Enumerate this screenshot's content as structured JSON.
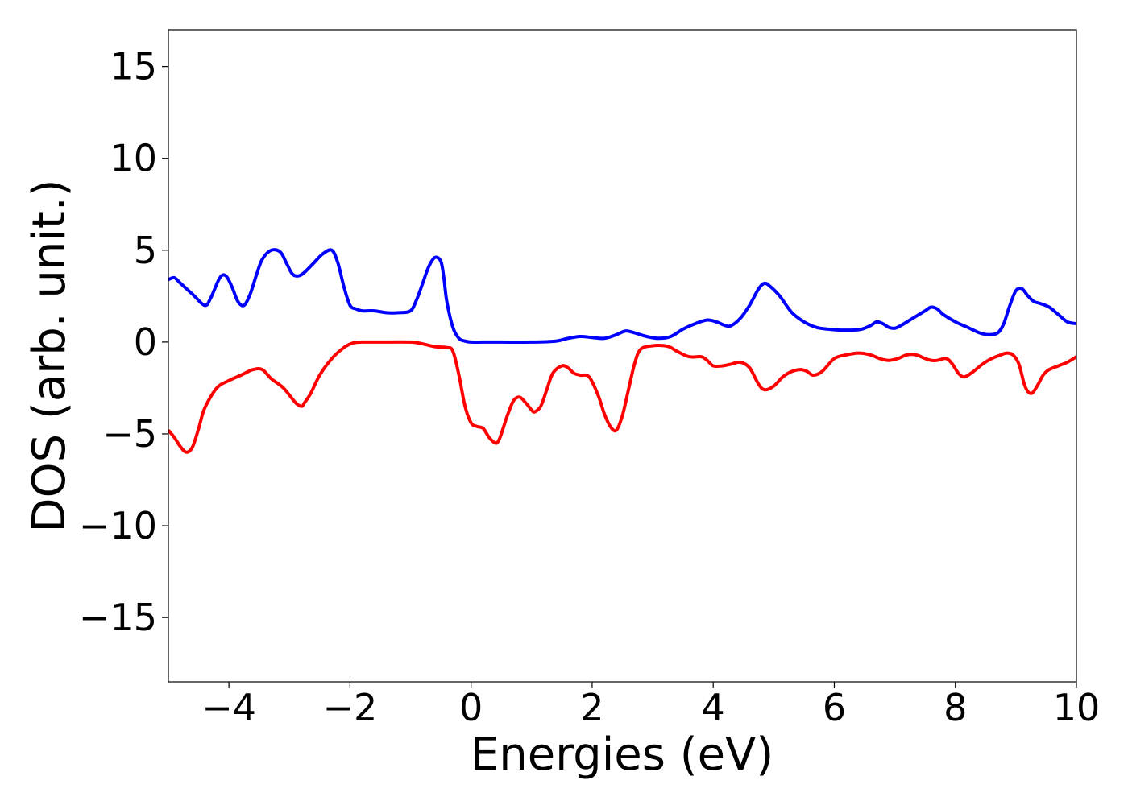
{
  "chart_data": {
    "type": "line",
    "title": "",
    "xlabel": "Energies (eV)",
    "ylabel": "DOS (arb. unit.)",
    "xlim": [
      -5,
      10
    ],
    "ylim": [
      -18.5,
      17
    ],
    "grid": false,
    "legend": "none",
    "x_ticks": [
      -4,
      -2,
      0,
      2,
      4,
      6,
      8,
      10
    ],
    "x_tick_labels": [
      "−4",
      "−2",
      "0",
      "2",
      "4",
      "6",
      "8",
      "10"
    ],
    "y_ticks": [
      15,
      10,
      5,
      0,
      -5,
      -10,
      -15
    ],
    "y_tick_labels": [
      "15",
      "10",
      "5",
      "0",
      "−5",
      "−10",
      "−15"
    ],
    "series": [
      {
        "color": "#0000ff",
        "x": [
          -5.0,
          -4.9,
          -4.8,
          -4.6,
          -4.4,
          -4.3,
          -4.15,
          -4.05,
          -3.95,
          -3.85,
          -3.75,
          -3.65,
          -3.55,
          -3.45,
          -3.3,
          -3.15,
          -3.05,
          -2.95,
          -2.85,
          -2.75,
          -2.6,
          -2.45,
          -2.3,
          -2.2,
          -2.1,
          -2.0,
          -1.9,
          -1.8,
          -1.6,
          -1.4,
          -1.2,
          -1.0,
          -0.9,
          -0.8,
          -0.7,
          -0.6,
          -0.5,
          -0.45,
          -0.4,
          -0.3,
          -0.2,
          -0.1,
          0.0,
          0.2,
          0.5,
          1.0,
          1.4,
          1.6,
          1.8,
          2.0,
          2.2,
          2.4,
          2.55,
          2.7,
          2.9,
          3.1,
          3.3,
          3.5,
          3.7,
          3.9,
          4.05,
          4.2,
          4.3,
          4.45,
          4.6,
          4.75,
          4.85,
          4.95,
          5.1,
          5.3,
          5.5,
          5.7,
          5.9,
          6.1,
          6.3,
          6.45,
          6.6,
          6.7,
          6.8,
          6.9,
          7.0,
          7.1,
          7.3,
          7.5,
          7.6,
          7.7,
          7.8,
          8.0,
          8.2,
          8.4,
          8.55,
          8.7,
          8.8,
          8.9,
          9.0,
          9.1,
          9.2,
          9.3,
          9.4,
          9.55,
          9.7,
          9.85,
          10.0
        ],
        "values": [
          3.4,
          3.5,
          3.2,
          2.6,
          2.0,
          2.4,
          3.5,
          3.6,
          3.0,
          2.2,
          2.0,
          2.6,
          3.6,
          4.5,
          5.0,
          4.9,
          4.3,
          3.7,
          3.6,
          3.8,
          4.3,
          4.8,
          5.0,
          4.3,
          3.0,
          2.0,
          1.8,
          1.7,
          1.7,
          1.6,
          1.6,
          1.7,
          2.3,
          3.2,
          4.1,
          4.6,
          4.4,
          3.5,
          2.2,
          0.8,
          0.2,
          0.05,
          0.0,
          0.0,
          0.0,
          0.0,
          0.05,
          0.2,
          0.3,
          0.25,
          0.2,
          0.4,
          0.6,
          0.5,
          0.3,
          0.2,
          0.3,
          0.7,
          1.0,
          1.2,
          1.1,
          0.9,
          0.9,
          1.3,
          2.0,
          2.9,
          3.2,
          3.0,
          2.5,
          1.6,
          1.1,
          0.8,
          0.7,
          0.65,
          0.65,
          0.7,
          0.9,
          1.1,
          1.0,
          0.8,
          0.75,
          0.9,
          1.3,
          1.7,
          1.9,
          1.8,
          1.5,
          1.1,
          0.8,
          0.5,
          0.4,
          0.5,
          1.0,
          2.0,
          2.8,
          2.9,
          2.5,
          2.2,
          2.1,
          1.9,
          1.5,
          1.1,
          1.0
        ]
      },
      {
        "color": "#ff0000",
        "x": [
          -5.0,
          -4.9,
          -4.8,
          -4.7,
          -4.6,
          -4.5,
          -4.4,
          -4.2,
          -4.0,
          -3.8,
          -3.6,
          -3.45,
          -3.3,
          -3.1,
          -2.9,
          -2.8,
          -2.75,
          -2.65,
          -2.5,
          -2.3,
          -2.1,
          -1.95,
          -1.8,
          -1.5,
          -1.0,
          -0.8,
          -0.6,
          -0.4,
          -0.3,
          -0.2,
          -0.1,
          0.0,
          0.1,
          0.2,
          0.3,
          0.4,
          0.45,
          0.5,
          0.6,
          0.7,
          0.8,
          0.9,
          1.0,
          1.05,
          1.15,
          1.25,
          1.35,
          1.5,
          1.6,
          1.7,
          1.8,
          1.95,
          2.1,
          2.2,
          2.3,
          2.4,
          2.5,
          2.6,
          2.7,
          2.8,
          3.0,
          3.2,
          3.3,
          3.4,
          3.6,
          3.8,
          3.9,
          4.0,
          4.15,
          4.3,
          4.45,
          4.6,
          4.75,
          4.85,
          5.0,
          5.15,
          5.3,
          5.45,
          5.55,
          5.65,
          5.8,
          6.0,
          6.2,
          6.4,
          6.6,
          6.75,
          6.9,
          7.05,
          7.2,
          7.35,
          7.5,
          7.6,
          7.7,
          7.85,
          7.95,
          8.05,
          8.15,
          8.3,
          8.45,
          8.6,
          8.75,
          8.85,
          8.95,
          9.05,
          9.15,
          9.25,
          9.35,
          9.45,
          9.55,
          9.7,
          9.85,
          10.0
        ],
        "values": [
          -4.8,
          -5.2,
          -5.7,
          -6.0,
          -5.7,
          -4.7,
          -3.6,
          -2.5,
          -2.1,
          -1.8,
          -1.5,
          -1.5,
          -2.0,
          -2.5,
          -3.3,
          -3.5,
          -3.3,
          -2.8,
          -1.8,
          -0.9,
          -0.3,
          -0.05,
          0.0,
          0.0,
          0.0,
          -0.1,
          -0.25,
          -0.3,
          -0.5,
          -1.8,
          -3.5,
          -4.4,
          -4.6,
          -4.7,
          -5.2,
          -5.5,
          -5.4,
          -5.0,
          -4.0,
          -3.2,
          -3.0,
          -3.3,
          -3.7,
          -3.8,
          -3.5,
          -2.6,
          -1.7,
          -1.3,
          -1.4,
          -1.7,
          -1.8,
          -1.9,
          -2.9,
          -3.9,
          -4.6,
          -4.8,
          -4.0,
          -2.6,
          -1.2,
          -0.4,
          -0.2,
          -0.2,
          -0.3,
          -0.5,
          -0.8,
          -0.8,
          -1.0,
          -1.3,
          -1.3,
          -1.2,
          -1.1,
          -1.4,
          -2.3,
          -2.6,
          -2.4,
          -1.9,
          -1.6,
          -1.5,
          -1.6,
          -1.8,
          -1.6,
          -0.9,
          -0.7,
          -0.6,
          -0.7,
          -0.9,
          -1.0,
          -0.9,
          -0.7,
          -0.7,
          -0.9,
          -1.0,
          -1.0,
          -0.9,
          -1.2,
          -1.7,
          -1.9,
          -1.6,
          -1.2,
          -0.9,
          -0.7,
          -0.6,
          -0.7,
          -1.2,
          -2.4,
          -2.8,
          -2.4,
          -1.8,
          -1.5,
          -1.3,
          -1.1,
          -0.8
        ]
      }
    ]
  }
}
